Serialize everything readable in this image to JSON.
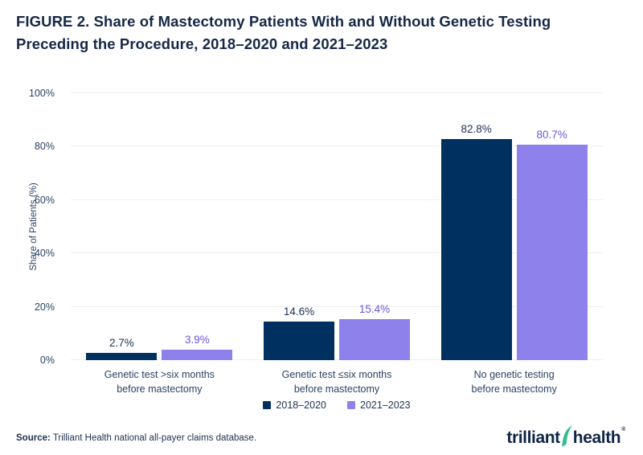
{
  "title": {
    "prefix": "FIGURE 2.",
    "text": " Share of Mastectomy Patients With and Without Genetic Testing Preceding the Procedure, 2018–2020 and 2021–2023"
  },
  "chart_data": {
    "type": "bar",
    "categories": [
      [
        "Genetic test >six months",
        "before mastectomy"
      ],
      [
        "Genetic test ≤six months",
        "before mastectomy"
      ],
      [
        "No genetic testing",
        "before mastectomy"
      ]
    ],
    "series": [
      {
        "name": "2018–2020",
        "color": "#00305F",
        "label_color": "#1B3055",
        "values": [
          2.7,
          14.6,
          82.8
        ]
      },
      {
        "name": "2021–2023",
        "color": "#8E81EC",
        "label_color": "#6C55E0",
        "values": [
          3.9,
          15.4,
          80.7
        ]
      }
    ],
    "value_suffix": "%",
    "ylabel": "Share of Patients (%)",
    "ylim": [
      0,
      100
    ],
    "yticks": [
      0,
      20,
      40,
      60,
      80,
      100
    ],
    "ytick_suffix": "%",
    "grid": "horizontal",
    "legend_position": "bottom-center",
    "gridline_color": "#EDEEF3"
  },
  "source": {
    "label": "Source:",
    "text": " Trilliant Health national all-payer claims database."
  },
  "logo": {
    "word1": "trilliant",
    "word2": "health",
    "registered": "®",
    "swoosh_color": "#2FBE8E",
    "icon": "swoosh-leaf-icon"
  }
}
